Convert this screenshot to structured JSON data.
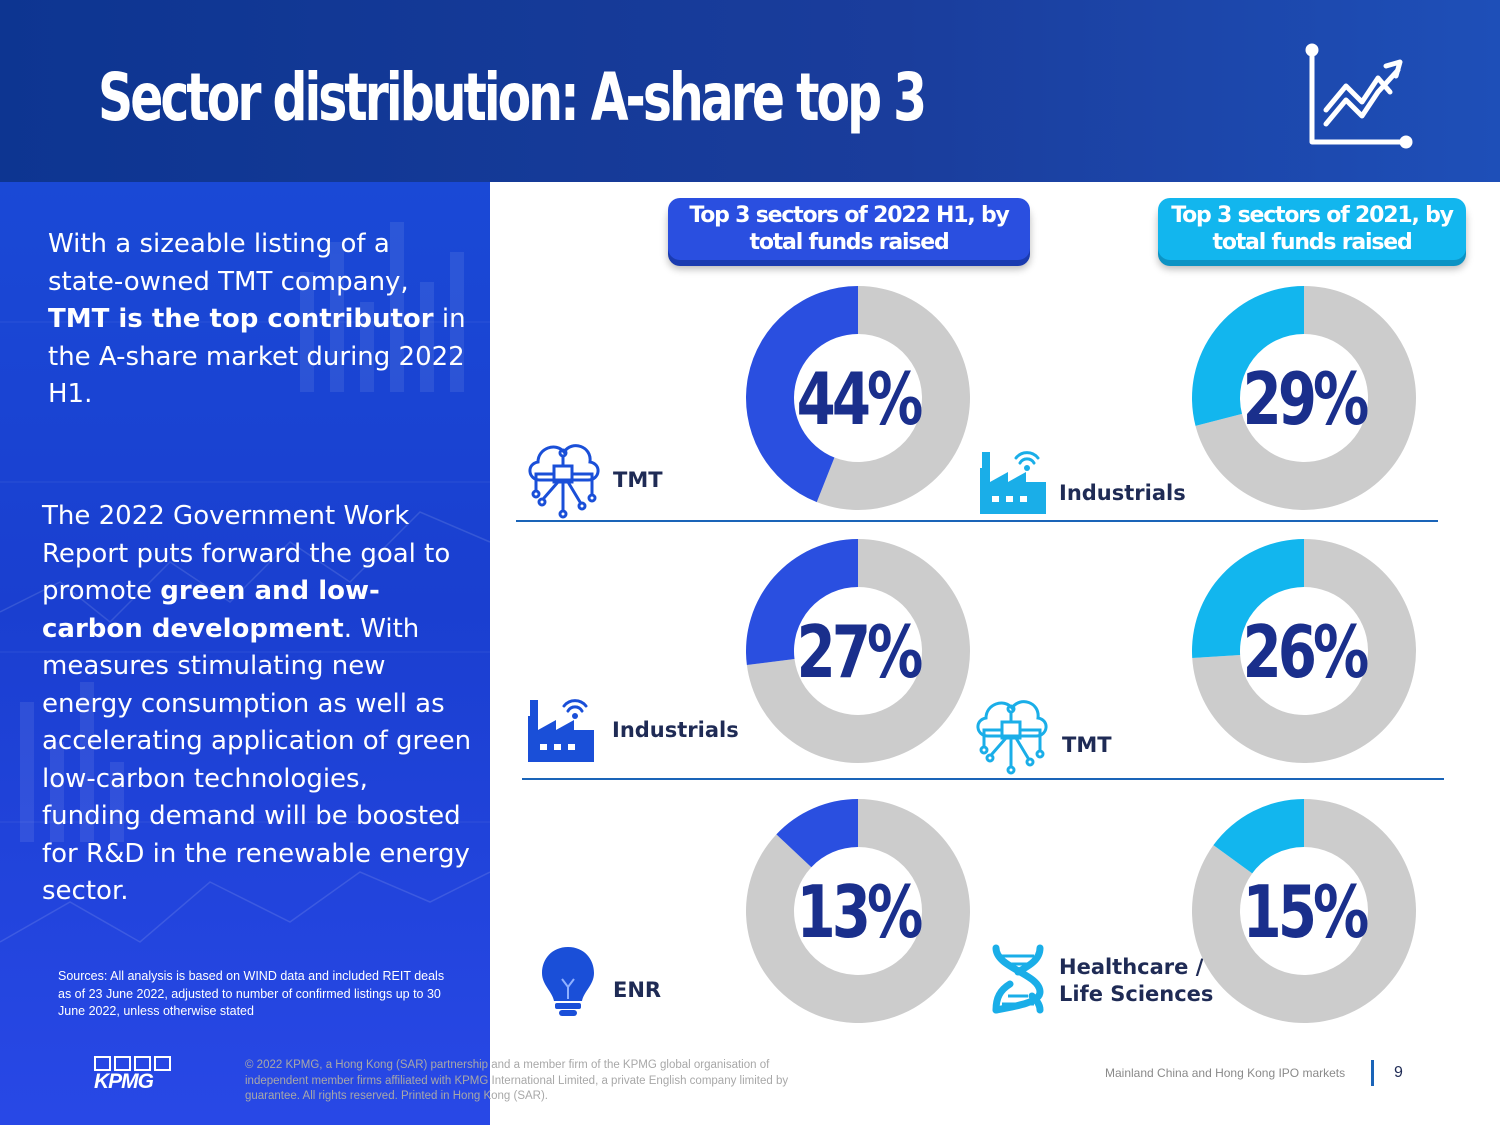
{
  "slide": {
    "title": "Sector distribution: A-share top 3"
  },
  "left_panel": {
    "para1": [
      {
        "text": "With a sizeable listing of a state-owned TMT company, ",
        "bold": false
      },
      {
        "text": "TMT is the top contributor",
        "bold": true
      },
      {
        "text": " in the A-share market during 2022 H1.",
        "bold": false
      }
    ],
    "para2": [
      {
        "text": "The 2022 Government Work Report puts forward the goal to promote ",
        "bold": false
      },
      {
        "text": "green and low-carbon development",
        "bold": true
      },
      {
        "text": ". With measures stimulating new energy consumption as well as accelerating application of green low-carbon technologies, funding demand will be boosted for R&D in the renewable energy sector.",
        "bold": false
      }
    ],
    "sources": "Sources: All analysis is based on WIND data and included REIT deals as of 23 June 2022, adjusted to number of confirmed listings up to 30 June 2022, unless otherwise stated",
    "logo_text": "KPMG"
  },
  "colors": {
    "h1_accent": "#2a4fe0",
    "y2021_accent": "#12b6ee",
    "remainder": "#cccccc",
    "value_text": "#1a2f8c",
    "label_text": "#1f2b55"
  },
  "chart_data": [
    {
      "type": "pie",
      "title": "Top 3 sectors of 2022 H1, by total funds raised",
      "categories": [
        "TMT",
        "Industrials",
        "ENR"
      ],
      "values": [
        44,
        27,
        13
      ],
      "value_labels": [
        "44%",
        "27%",
        "13%"
      ],
      "icons": [
        "cloud-circuit-icon",
        "factory-wifi-icon",
        "lightbulb-icon"
      ],
      "unit": "%"
    },
    {
      "type": "pie",
      "title": "Top 3 sectors of 2021, by total funds raised",
      "categories": [
        "Industrials",
        "TMT",
        "Healthcare / Life Sciences"
      ],
      "values": [
        29,
        26,
        15
      ],
      "value_labels": [
        "29%",
        "26%",
        "15%"
      ],
      "icons": [
        "factory-wifi-icon",
        "cloud-circuit-icon",
        "dna-icon"
      ],
      "unit": "%"
    }
  ],
  "labels": {
    "h1": [
      "TMT",
      "Industrials",
      "ENR"
    ],
    "y2021": [
      "Industrials",
      "TMT",
      "Healthcare /\nLife Sciences"
    ]
  },
  "footer": {
    "copyright": "© 2022 KPMG, a Hong Kong (SAR) partnership and a member firm of the KPMG global organisation of independent member firms affiliated with KPMG International Limited, a private English company limited by guarantee. All rights reserved. Printed in Hong Kong (SAR).",
    "document_title": "Mainland China and Hong Kong IPO markets",
    "page_number": "9"
  }
}
